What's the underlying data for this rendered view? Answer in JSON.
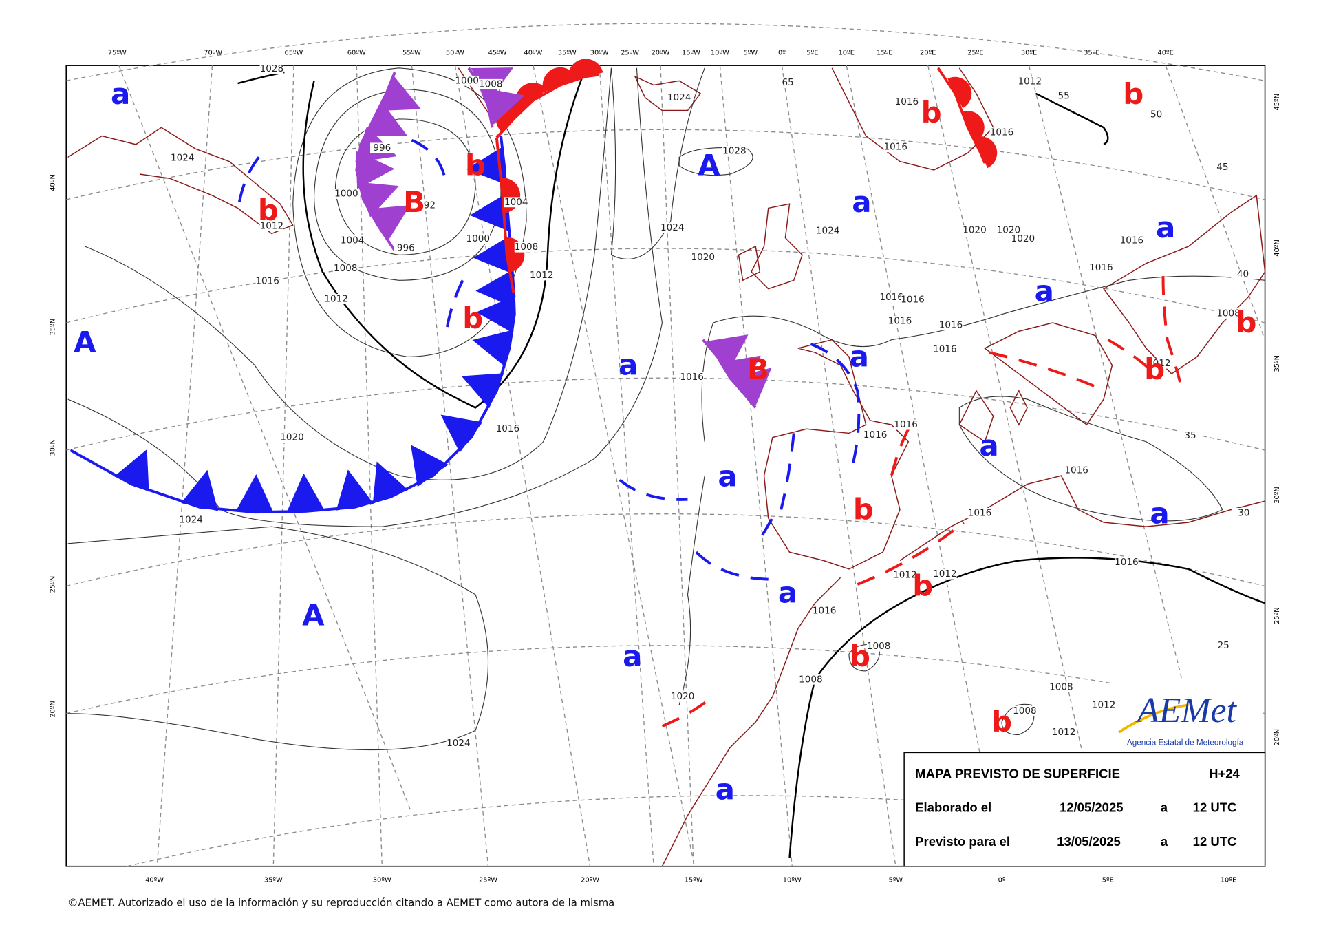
{
  "top_lon_labels": [
    "75ºW",
    "70ºW",
    "65ºW",
    "60ºW",
    "55ºW",
    "50ºW",
    "45ºW",
    "40ºW",
    "35ºW",
    "30ºW",
    "25ºW",
    "20ºW",
    "15ºW",
    "10ºW",
    "5ºW",
    "0º",
    "5ºE",
    "10ºE",
    "15ºE",
    "20ºE",
    "25ºE",
    "30ºE",
    "35ºE",
    "40ºE"
  ],
  "bottom_lon_labels": [
    "40ºW",
    "35ºW",
    "30ºW",
    "25ºW",
    "20ºW",
    "15ºW",
    "10ºW",
    "5ºW",
    "0º",
    "5ºE",
    "10ºE"
  ],
  "left_lat_labels": [
    "40ºN",
    "35ºN",
    "30ºN",
    "25ºN",
    "20ºN"
  ],
  "right_lat_labels": [
    "45ºN",
    "40ºN",
    "35ºN",
    "30ºN",
    "25ºN",
    "20ºN"
  ],
  "pressure_centers": [
    "a",
    "A",
    "b",
    "B",
    "b",
    "a",
    "b",
    "b",
    "a",
    "A",
    "b",
    "a",
    "B",
    "a",
    "a",
    "b",
    "b",
    "a",
    "a",
    "b",
    "a",
    "b",
    "a",
    "A",
    "a",
    "b",
    "b",
    "a"
  ],
  "isobar_labels": [
    "1028",
    "1000",
    "1008",
    "1024",
    "65",
    "1016",
    "1012",
    "55",
    "50",
    "1028",
    "1016",
    "1016",
    "996",
    "1024",
    "1004",
    "92",
    "1000",
    "1012",
    "1024",
    "1024",
    "1020",
    "1020",
    "1020",
    "1004",
    "1000",
    "996",
    "1008",
    "1016",
    "1020",
    "1008",
    "1016",
    "1012",
    "1016",
    "40",
    "1012",
    "1016",
    "1016",
    "1016",
    "1016",
    "1016",
    "1008",
    "1016",
    "1012",
    "1016",
    "1016",
    "1016",
    "35",
    "1020",
    "1016",
    "1016",
    "30",
    "1024",
    "1016",
    "1012",
    "1012",
    "1016",
    "25",
    "1008",
    "1008",
    "1008",
    "1020",
    "1008",
    "1012",
    "1012",
    "1024",
    "45"
  ],
  "high_color": "#1a1aee",
  "low_color": "#ee1a1a",
  "info_box": {
    "title": "MAPA PREVISTO DE SUPERFICIE",
    "lead_time": "H+24",
    "made_label": "Elaborado el",
    "made_date": "12/05/2025",
    "made_at": "a",
    "made_time": "12 UTC",
    "valid_label": "Previsto para el",
    "valid_date": "13/05/2025",
    "valid_at": "a",
    "valid_time": "12 UTC"
  },
  "logo": {
    "name": "AEMet",
    "subtitle": "Agencia Estatal de Meteorología"
  },
  "copyright": "©AEMET. Autorizado el uso de la información y su reproducción citando a AEMET como autora de la misma"
}
